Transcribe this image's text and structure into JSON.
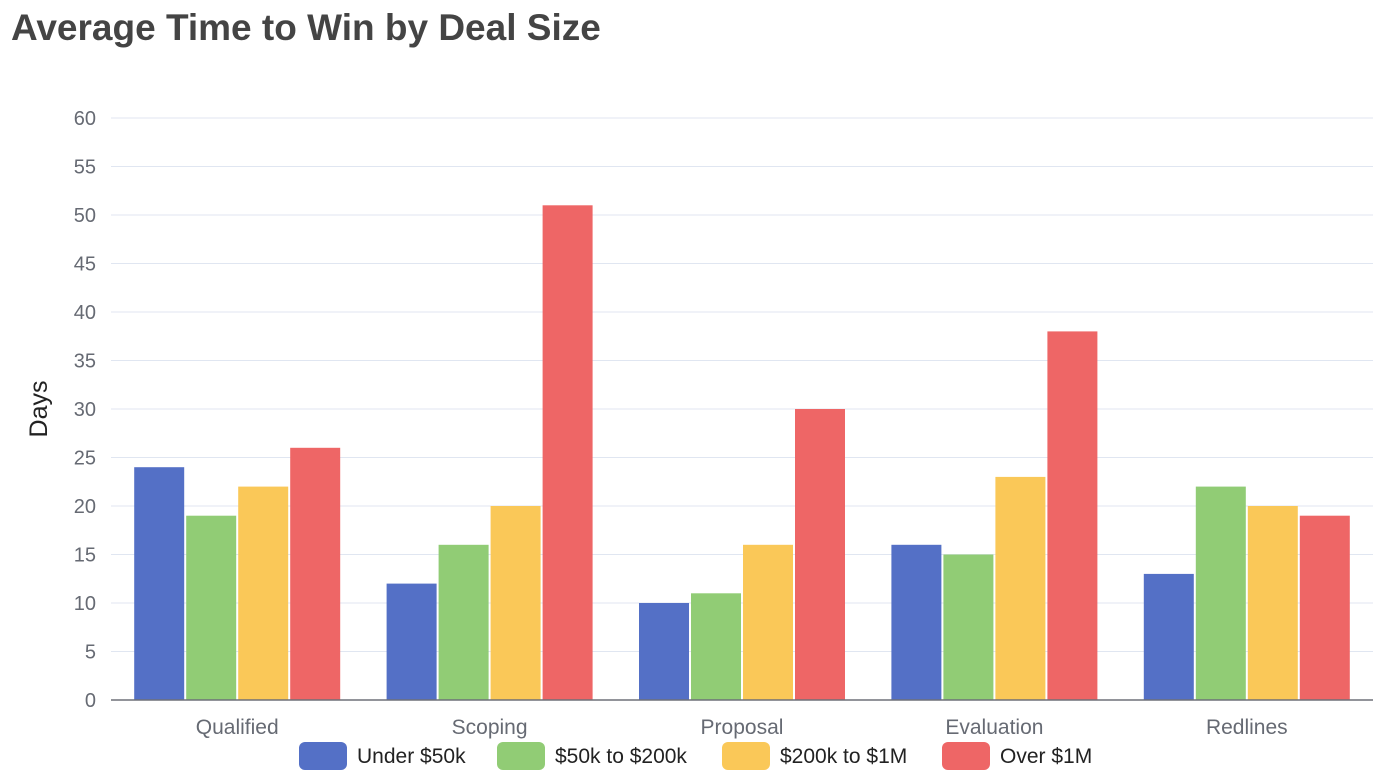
{
  "chart_data": {
    "type": "bar",
    "title": "Average Time to Win by Deal Size",
    "xlabel": "",
    "ylabel": "Days",
    "ylim": [
      0,
      60
    ],
    "yticks": [
      0,
      5,
      10,
      15,
      20,
      25,
      30,
      35,
      40,
      45,
      50,
      55,
      60
    ],
    "categories": [
      "Qualified",
      "Scoping",
      "Proposal",
      "Evaluation",
      "Redlines"
    ],
    "series": [
      {
        "name": "Under $50k",
        "color": "#5470c6",
        "values": [
          24,
          12,
          10,
          16,
          13
        ]
      },
      {
        "name": "$50k to $200k",
        "color": "#91cc75",
        "values": [
          19,
          16,
          11,
          15,
          22
        ]
      },
      {
        "name": "$200k to $1M",
        "color": "#fac858",
        "values": [
          22,
          20,
          16,
          23,
          20
        ]
      },
      {
        "name": "Over $1M",
        "color": "#ee6666",
        "values": [
          26,
          51,
          30,
          38,
          19
        ]
      }
    ],
    "grid": true,
    "legend_position": "bottom"
  }
}
